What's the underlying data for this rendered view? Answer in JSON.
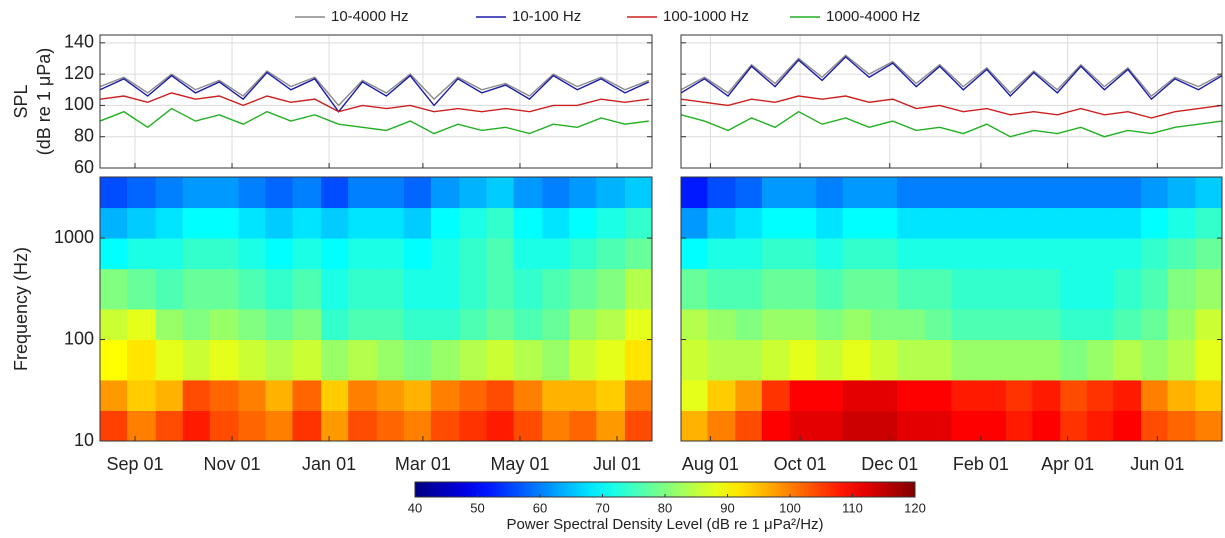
{
  "chart_data": [
    {
      "type": "line",
      "ylabel": [
        "SPL",
        "(dB re 1 μPa)"
      ],
      "legend": "top",
      "grid": true,
      "show_ytick_labels": true,
      "xlim": [
        0,
        347
      ],
      "xticks": [
        22,
        83,
        144,
        203,
        264,
        325
      ],
      "ylim": [
        60,
        145
      ],
      "yticks": [
        60,
        80,
        100,
        120,
        140
      ],
      "x": [
        0,
        15,
        30,
        45,
        60,
        75,
        90,
        105,
        120,
        135,
        150,
        165,
        180,
        195,
        210,
        225,
        240,
        255,
        270,
        285,
        300,
        315,
        330,
        345
      ],
      "series": [
        {
          "name": "10-4000 Hz",
          "color": "#8a8a8a",
          "values": [
            112,
            118,
            108,
            120,
            110,
            116,
            106,
            122,
            112,
            118,
            100,
            116,
            108,
            120,
            104,
            118,
            110,
            114,
            106,
            120,
            112,
            118,
            110,
            116
          ]
        },
        {
          "name": "10-100 Hz",
          "color": "#1c1ca8",
          "values": [
            110,
            117,
            106,
            119,
            108,
            115,
            104,
            121,
            110,
            117,
            96,
            115,
            106,
            119,
            100,
            117,
            108,
            113,
            104,
            119,
            110,
            117,
            108,
            115
          ]
        },
        {
          "name": "100-1000 Hz",
          "color": "#cc2020",
          "values": [
            104,
            106,
            102,
            108,
            104,
            106,
            100,
            106,
            102,
            104,
            96,
            100,
            98,
            100,
            96,
            98,
            96,
            98,
            96,
            100,
            100,
            104,
            102,
            104
          ]
        },
        {
          "name": "1000-4000 Hz",
          "color": "#22b022",
          "values": [
            90,
            96,
            86,
            98,
            90,
            94,
            88,
            96,
            90,
            94,
            88,
            86,
            84,
            90,
            82,
            88,
            84,
            86,
            82,
            88,
            86,
            92,
            88,
            90
          ]
        }
      ]
    },
    {
      "type": "line",
      "grid": true,
      "show_ytick_labels": false,
      "xlim": [
        0,
        368
      ],
      "xticks": [
        20,
        81,
        142,
        204,
        263,
        324
      ],
      "ylim": [
        60,
        145
      ],
      "yticks": [
        60,
        80,
        100,
        120,
        140
      ],
      "x": [
        0,
        16,
        32,
        48,
        64,
        80,
        96,
        112,
        128,
        144,
        160,
        176,
        192,
        208,
        224,
        240,
        256,
        272,
        288,
        304,
        320,
        336,
        352,
        368
      ],
      "series": [
        {
          "name": "10-4000 Hz",
          "color": "#8a8a8a",
          "values": [
            110,
            118,
            108,
            126,
            114,
            130,
            118,
            132,
            120,
            128,
            114,
            126,
            112,
            124,
            108,
            122,
            110,
            126,
            112,
            124,
            106,
            118,
            112,
            120
          ]
        },
        {
          "name": "10-100 Hz",
          "color": "#1c1ca8",
          "values": [
            108,
            117,
            106,
            125,
            112,
            129,
            116,
            131,
            118,
            127,
            112,
            125,
            110,
            123,
            106,
            121,
            108,
            125,
            110,
            123,
            104,
            117,
            110,
            119
          ]
        },
        {
          "name": "100-1000 Hz",
          "color": "#cc2020",
          "values": [
            104,
            102,
            100,
            104,
            102,
            106,
            104,
            106,
            102,
            104,
            98,
            100,
            96,
            98,
            94,
            96,
            94,
            98,
            94,
            96,
            92,
            96,
            98,
            100
          ]
        },
        {
          "name": "1000-4000 Hz",
          "color": "#22b022",
          "values": [
            94,
            90,
            84,
            92,
            86,
            96,
            88,
            92,
            86,
            90,
            84,
            86,
            82,
            88,
            80,
            84,
            82,
            86,
            80,
            84,
            82,
            86,
            88,
            90
          ]
        }
      ]
    },
    {
      "type": "heatmap",
      "ylabel": "Frequency (Hz)",
      "ylog": true,
      "colormap": "jet",
      "show_ytick_labels": true,
      "clim": [
        40,
        120
      ],
      "cticks": [
        40,
        50,
        60,
        70,
        80,
        90,
        100,
        110,
        120
      ],
      "colorbar_label": "Power Spectral Density Level (dB re 1 μPa²/Hz)",
      "xlim": [
        0,
        347
      ],
      "xticks": [
        {
          "value": 22,
          "label": "Sep 01"
        },
        {
          "value": 83,
          "label": "Nov 01"
        },
        {
          "value": 144,
          "label": "Jan 01"
        },
        {
          "value": 203,
          "label": "Mar 01"
        },
        {
          "value": 264,
          "label": "May 01"
        },
        {
          "value": 325,
          "label": "Jul 01"
        }
      ],
      "ylim": [
        10,
        4000
      ],
      "yticks": [
        10,
        100,
        1000
      ],
      "x_bins": [
        0,
        17,
        35,
        52,
        69,
        87,
        104,
        121,
        139,
        156,
        174,
        191,
        208,
        226,
        243,
        260,
        278,
        295,
        312,
        330,
        347
      ],
      "y_bins": [
        10,
        20,
        40,
        100,
        200,
        500,
        1000,
        2000,
        4000
      ],
      "z": [
        [
          105,
          100,
          104,
          108,
          104,
          102,
          100,
          106,
          98,
          104,
          102,
          100,
          104,
          106,
          108,
          104,
          100,
          102,
          98,
          104
        ],
        [
          98,
          94,
          96,
          104,
          102,
          100,
          96,
          102,
          94,
          100,
          98,
          96,
          100,
          102,
          104,
          100,
          96,
          96,
          94,
          100
        ],
        [
          90,
          92,
          88,
          86,
          88,
          86,
          84,
          86,
          82,
          84,
          82,
          80,
          82,
          84,
          86,
          84,
          82,
          86,
          88,
          92
        ],
        [
          86,
          88,
          82,
          80,
          82,
          80,
          78,
          80,
          74,
          76,
          76,
          74,
          74,
          76,
          78,
          76,
          78,
          82,
          84,
          88
        ],
        [
          80,
          78,
          76,
          78,
          78,
          76,
          74,
          76,
          72,
          74,
          74,
          72,
          72,
          74,
          76,
          74,
          76,
          78,
          80,
          84
        ],
        [
          70,
          72,
          72,
          74,
          74,
          72,
          70,
          72,
          70,
          72,
          72,
          70,
          72,
          74,
          76,
          72,
          72,
          74,
          76,
          78
        ],
        [
          64,
          66,
          68,
          70,
          70,
          68,
          66,
          68,
          66,
          68,
          68,
          66,
          70,
          72,
          74,
          70,
          68,
          70,
          72,
          74
        ],
        [
          56,
          58,
          60,
          62,
          62,
          60,
          58,
          60,
          56,
          60,
          60,
          58,
          62,
          64,
          66,
          62,
          60,
          62,
          64,
          66
        ]
      ]
    },
    {
      "type": "heatmap",
      "ylog": true,
      "colormap": "jet",
      "show_ytick_labels": false,
      "clim": [
        40,
        120
      ],
      "xlim": [
        0,
        368
      ],
      "xticks": [
        {
          "value": 20,
          "label": "Aug 01"
        },
        {
          "value": 81,
          "label": "Oct 01"
        },
        {
          "value": 142,
          "label": "Dec 01"
        },
        {
          "value": 204,
          "label": "Feb 01"
        },
        {
          "value": 263,
          "label": "Apr 01"
        },
        {
          "value": 324,
          "label": "Jun 01"
        }
      ],
      "ylim": [
        10,
        4000
      ],
      "yticks": [
        10,
        100,
        1000
      ],
      "x_bins": [
        0,
        18,
        37,
        55,
        74,
        92,
        110,
        129,
        147,
        166,
        184,
        202,
        221,
        239,
        258,
        276,
        294,
        313,
        331,
        350,
        368
      ],
      "y_bins": [
        10,
        20,
        40,
        100,
        200,
        500,
        1000,
        2000,
        4000
      ],
      "z": [
        [
          96,
          100,
          104,
          110,
          112,
          112,
          114,
          114,
          112,
          112,
          110,
          110,
          108,
          110,
          106,
          108,
          110,
          104,
          102,
          100
        ],
        [
          88,
          94,
          98,
          106,
          110,
          110,
          112,
          112,
          110,
          110,
          108,
          108,
          106,
          108,
          104,
          106,
          108,
          100,
          96,
          94
        ],
        [
          86,
          84,
          84,
          86,
          88,
          86,
          88,
          86,
          84,
          84,
          82,
          82,
          82,
          82,
          80,
          82,
          84,
          82,
          84,
          88
        ],
        [
          84,
          82,
          80,
          82,
          82,
          80,
          82,
          80,
          80,
          78,
          76,
          76,
          76,
          76,
          74,
          74,
          76,
          78,
          82,
          86
        ],
        [
          78,
          76,
          76,
          78,
          78,
          76,
          78,
          78,
          76,
          76,
          74,
          74,
          74,
          74,
          72,
          72,
          74,
          76,
          80,
          82
        ],
        [
          70,
          72,
          72,
          74,
          74,
          72,
          74,
          74,
          72,
          72,
          72,
          72,
          72,
          72,
          72,
          72,
          72,
          74,
          76,
          78
        ],
        [
          62,
          66,
          68,
          70,
          70,
          68,
          70,
          70,
          68,
          68,
          68,
          68,
          68,
          68,
          68,
          68,
          68,
          70,
          72,
          74
        ],
        [
          52,
          56,
          58,
          62,
          62,
          60,
          62,
          62,
          60,
          60,
          60,
          60,
          60,
          60,
          60,
          60,
          60,
          62,
          64,
          66
        ]
      ]
    }
  ]
}
